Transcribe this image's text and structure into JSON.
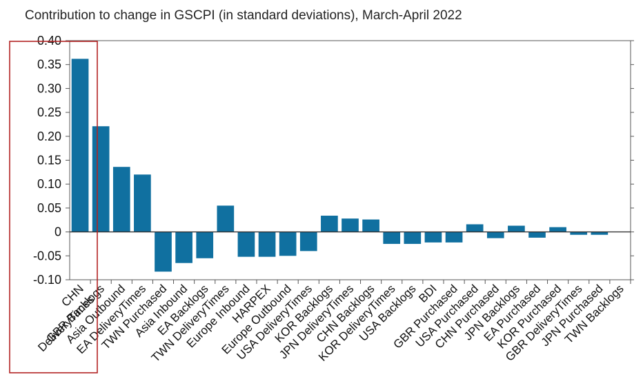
{
  "chart_data": {
    "type": "bar",
    "title": "Contribution to change in GSCPI (in standard deviations), March-April 2022",
    "xlabel": "",
    "ylabel": "",
    "ylim": [
      -0.1,
      0.4
    ],
    "yticks": [
      0.4,
      0.35,
      0.3,
      0.25,
      0.2,
      0.15,
      0.1,
      0.05,
      0,
      -0.05,
      -0.1
    ],
    "ytick_labels": [
      "0.40",
      "0.35",
      "0.30",
      "0.25",
      "0.20",
      "0.15",
      "0.10",
      "0.05",
      "0",
      "-0.05",
      "-0.10"
    ],
    "categories": [
      "CHN\nDeliveryTimes",
      "GBR Backlogs",
      "Asia Outbound",
      "EA DeliveryTimes",
      "TWN Purchased",
      "Asia Inbound",
      "EA Backlogs",
      "TWN DeliveryTimes",
      "Europe Inbound",
      "HARPEX",
      "Europe Outbound",
      "USA DeliveryTimes",
      "KOR Backlogs",
      "JPN DeliveryTimes",
      "CHN Backlogs",
      "KOR DeliveryTimes",
      "USA Backlogs",
      "BDI",
      "GBR Purchased",
      "USA Purchased",
      "CHN Purchased",
      "JPN Backlogs",
      "EA Purchased",
      "KOR Purchased",
      "GBR DeliveryTimes",
      "JPN Purchased",
      "TWN Backlogs"
    ],
    "values": [
      0.362,
      0.221,
      0.136,
      0.12,
      -0.083,
      -0.065,
      -0.055,
      0.055,
      -0.052,
      -0.052,
      -0.05,
      -0.04,
      0.034,
      0.028,
      0.026,
      -0.025,
      -0.025,
      -0.022,
      -0.022,
      0.016,
      -0.013,
      0.013,
      -0.012,
      0.01,
      -0.006,
      -0.006,
      0
    ],
    "bar_color": "#1070a0",
    "highlight_color": "#b22222"
  }
}
